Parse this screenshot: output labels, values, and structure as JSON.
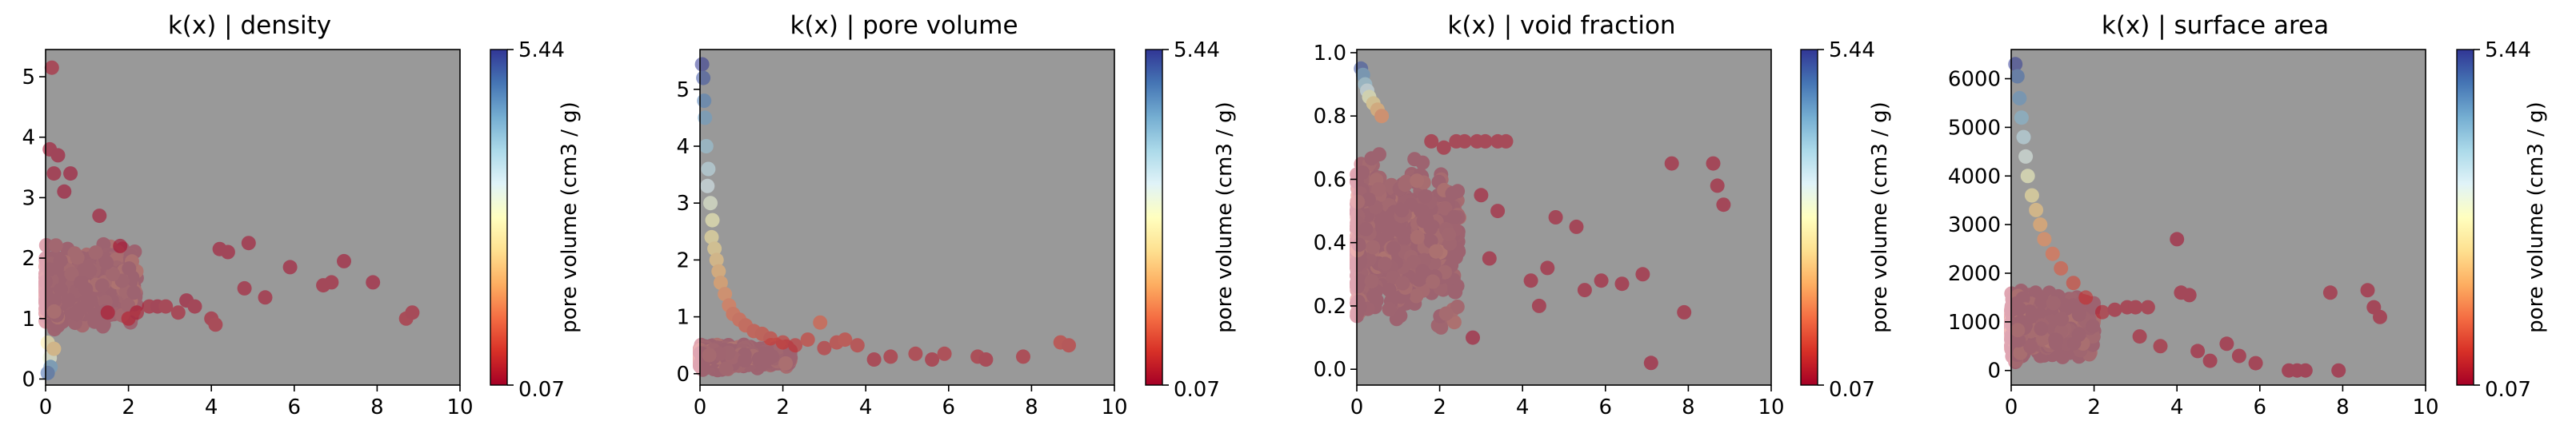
{
  "figure": {
    "background": "#ffffff",
    "plot_background": "#999999",
    "colormap": "RdYlBu",
    "marker_alpha": 0.35
  },
  "chart_data": [
    {
      "type": "scatter",
      "title": "k(x) | density",
      "xlabel": "",
      "ylabel": "",
      "xlim": [
        0,
        10
      ],
      "ylim": [
        -0.1,
        5.45
      ],
      "xticks": [
        "0",
        "2",
        "4",
        "6",
        "8",
        "10"
      ],
      "yticks": [
        "0",
        "1",
        "2",
        "3",
        "4",
        "5"
      ],
      "grid": false,
      "colorbar": {
        "label": "pore volume (cm3 / g)",
        "min": "0.07",
        "max": "5.44"
      },
      "cloud": {
        "x_range": [
          0,
          2.2
        ],
        "y_center": 1.5,
        "y_spread": 0.8
      },
      "points": [
        {
          "x": 0.15,
          "y": 5.15,
          "c": 0.2
        },
        {
          "x": 0.1,
          "y": 3.8,
          "c": 0.1
        },
        {
          "x": 0.3,
          "y": 3.7,
          "c": 0.08
        },
        {
          "x": 0.2,
          "y": 3.4,
          "c": 0.1
        },
        {
          "x": 0.6,
          "y": 3.4,
          "c": 0.05
        },
        {
          "x": 0.45,
          "y": 3.1,
          "c": 0.06
        },
        {
          "x": 0.05,
          "y": 0.6,
          "c": 2.5
        },
        {
          "x": 0.1,
          "y": 0.35,
          "c": 3.0
        },
        {
          "x": 0.12,
          "y": 0.2,
          "c": 4.5
        },
        {
          "x": 0.05,
          "y": 0.1,
          "c": 5.0
        },
        {
          "x": 0.2,
          "y": 0.5,
          "c": 2.0
        },
        {
          "x": 1.3,
          "y": 2.7,
          "c": 0.1
        },
        {
          "x": 1.5,
          "y": 1.1,
          "c": 0.2
        },
        {
          "x": 1.8,
          "y": 2.2,
          "c": 0.1
        },
        {
          "x": 2.0,
          "y": 1.0,
          "c": 0.3
        },
        {
          "x": 2.2,
          "y": 1.1,
          "c": 0.2
        },
        {
          "x": 2.5,
          "y": 1.2,
          "c": 0.2
        },
        {
          "x": 2.7,
          "y": 1.2,
          "c": 0.15
        },
        {
          "x": 2.9,
          "y": 1.2,
          "c": 0.2
        },
        {
          "x": 3.2,
          "y": 1.1,
          "c": 0.2
        },
        {
          "x": 3.4,
          "y": 1.3,
          "c": 0.1
        },
        {
          "x": 3.6,
          "y": 1.2,
          "c": 0.15
        },
        {
          "x": 4.0,
          "y": 1.0,
          "c": 0.2
        },
        {
          "x": 4.1,
          "y": 0.9,
          "c": 0.25
        },
        {
          "x": 4.2,
          "y": 2.15,
          "c": 0.1
        },
        {
          "x": 4.4,
          "y": 2.1,
          "c": 0.1
        },
        {
          "x": 4.9,
          "y": 2.25,
          "c": 0.1
        },
        {
          "x": 4.8,
          "y": 1.5,
          "c": 0.15
        },
        {
          "x": 5.3,
          "y": 1.35,
          "c": 0.15
        },
        {
          "x": 5.9,
          "y": 1.85,
          "c": 0.1
        },
        {
          "x": 6.7,
          "y": 1.55,
          "c": 0.15
        },
        {
          "x": 6.9,
          "y": 1.6,
          "c": 0.15
        },
        {
          "x": 7.2,
          "y": 1.95,
          "c": 0.1
        },
        {
          "x": 7.9,
          "y": 1.6,
          "c": 0.12
        },
        {
          "x": 8.7,
          "y": 1.0,
          "c": 0.25
        },
        {
          "x": 8.85,
          "y": 1.1,
          "c": 0.2
        }
      ]
    },
    {
      "type": "scatter",
      "title": "k(x) | pore volume",
      "xlabel": "",
      "ylabel": "",
      "xlim": [
        0,
        10
      ],
      "ylim": [
        -0.2,
        5.7
      ],
      "xticks": [
        "0",
        "2",
        "4",
        "6",
        "8",
        "10"
      ],
      "yticks": [
        "0",
        "1",
        "2",
        "3",
        "4",
        "5"
      ],
      "grid": false,
      "colorbar": {
        "label": "pore volume (cm3 / g)",
        "min": "0.07",
        "max": "5.44"
      },
      "cloud": {
        "x_range": [
          0,
          2.2
        ],
        "y_center": 0.3,
        "y_spread": 0.25
      },
      "points": [
        {
          "x": 0.05,
          "y": 5.44,
          "c": 5.44
        },
        {
          "x": 0.08,
          "y": 5.2,
          "c": 5.2
        },
        {
          "x": 0.1,
          "y": 4.8,
          "c": 4.8
        },
        {
          "x": 0.12,
          "y": 4.5,
          "c": 4.5
        },
        {
          "x": 0.15,
          "y": 4.0,
          "c": 4.0
        },
        {
          "x": 0.2,
          "y": 3.6,
          "c": 3.6
        },
        {
          "x": 0.18,
          "y": 3.3,
          "c": 3.3
        },
        {
          "x": 0.25,
          "y": 3.0,
          "c": 3.0
        },
        {
          "x": 0.3,
          "y": 2.7,
          "c": 2.7
        },
        {
          "x": 0.28,
          "y": 2.4,
          "c": 2.4
        },
        {
          "x": 0.35,
          "y": 2.2,
          "c": 2.2
        },
        {
          "x": 0.4,
          "y": 2.0,
          "c": 2.0
        },
        {
          "x": 0.45,
          "y": 1.8,
          "c": 1.8
        },
        {
          "x": 0.5,
          "y": 1.6,
          "c": 1.6
        },
        {
          "x": 0.6,
          "y": 1.4,
          "c": 1.4
        },
        {
          "x": 0.7,
          "y": 1.2,
          "c": 1.2
        },
        {
          "x": 0.8,
          "y": 1.05,
          "c": 1.05
        },
        {
          "x": 0.95,
          "y": 0.95,
          "c": 0.95
        },
        {
          "x": 1.1,
          "y": 0.85,
          "c": 0.85
        },
        {
          "x": 1.3,
          "y": 0.75,
          "c": 0.75
        },
        {
          "x": 1.5,
          "y": 0.7,
          "c": 0.7
        },
        {
          "x": 1.7,
          "y": 0.62,
          "c": 0.62
        },
        {
          "x": 2.0,
          "y": 0.55,
          "c": 0.55
        },
        {
          "x": 2.3,
          "y": 0.5,
          "c": 0.5
        },
        {
          "x": 2.6,
          "y": 0.6,
          "c": 0.6
        },
        {
          "x": 2.9,
          "y": 0.9,
          "c": 0.9
        },
        {
          "x": 3.0,
          "y": 0.45,
          "c": 0.45
        },
        {
          "x": 3.3,
          "y": 0.55,
          "c": 0.55
        },
        {
          "x": 3.5,
          "y": 0.6,
          "c": 0.6
        },
        {
          "x": 3.8,
          "y": 0.5,
          "c": 0.5
        },
        {
          "x": 4.2,
          "y": 0.25,
          "c": 0.25
        },
        {
          "x": 4.6,
          "y": 0.3,
          "c": 0.3
        },
        {
          "x": 5.2,
          "y": 0.35,
          "c": 0.35
        },
        {
          "x": 5.6,
          "y": 0.25,
          "c": 0.25
        },
        {
          "x": 5.9,
          "y": 0.35,
          "c": 0.35
        },
        {
          "x": 6.7,
          "y": 0.3,
          "c": 0.3
        },
        {
          "x": 6.9,
          "y": 0.25,
          "c": 0.25
        },
        {
          "x": 7.8,
          "y": 0.3,
          "c": 0.3
        },
        {
          "x": 8.7,
          "y": 0.55,
          "c": 0.55
        },
        {
          "x": 8.9,
          "y": 0.5,
          "c": 0.5
        }
      ]
    },
    {
      "type": "scatter",
      "title": "k(x) | void fraction",
      "xlabel": "",
      "ylabel": "",
      "xlim": [
        0,
        10
      ],
      "ylim": [
        -0.05,
        1.01
      ],
      "xticks": [
        "0",
        "2",
        "4",
        "6",
        "8",
        "10"
      ],
      "yticks": [
        "0.0",
        "0.2",
        "0.4",
        "0.6",
        "0.8",
        "1.0"
      ],
      "grid": false,
      "colorbar": {
        "label": "pore volume (cm3 / g)",
        "min": "0.07",
        "max": "5.44"
      },
      "cloud": {
        "x_range": [
          0,
          2.5
        ],
        "y_center": 0.4,
        "y_spread": 0.3
      },
      "points": [
        {
          "x": 0.1,
          "y": 0.95,
          "c": 5.2
        },
        {
          "x": 0.15,
          "y": 0.93,
          "c": 4.6
        },
        {
          "x": 0.2,
          "y": 0.9,
          "c": 4.0
        },
        {
          "x": 0.25,
          "y": 0.88,
          "c": 3.4
        },
        {
          "x": 0.3,
          "y": 0.86,
          "c": 2.8
        },
        {
          "x": 0.4,
          "y": 0.84,
          "c": 2.2
        },
        {
          "x": 0.5,
          "y": 0.82,
          "c": 1.8
        },
        {
          "x": 0.6,
          "y": 0.8,
          "c": 1.4
        },
        {
          "x": 1.8,
          "y": 0.72,
          "c": 0.2
        },
        {
          "x": 2.1,
          "y": 0.7,
          "c": 0.2
        },
        {
          "x": 2.4,
          "y": 0.72,
          "c": 0.2
        },
        {
          "x": 2.6,
          "y": 0.72,
          "c": 0.2
        },
        {
          "x": 2.9,
          "y": 0.72,
          "c": 0.2
        },
        {
          "x": 3.1,
          "y": 0.72,
          "c": 0.2
        },
        {
          "x": 3.4,
          "y": 0.72,
          "c": 0.2
        },
        {
          "x": 3.6,
          "y": 0.72,
          "c": 0.2
        },
        {
          "x": 3.0,
          "y": 0.55,
          "c": 0.15
        },
        {
          "x": 3.4,
          "y": 0.5,
          "c": 0.15
        },
        {
          "x": 3.2,
          "y": 0.35,
          "c": 0.15
        },
        {
          "x": 2.8,
          "y": 0.1,
          "c": 0.1
        },
        {
          "x": 4.2,
          "y": 0.28,
          "c": 0.15
        },
        {
          "x": 4.6,
          "y": 0.32,
          "c": 0.15
        },
        {
          "x": 4.4,
          "y": 0.2,
          "c": 0.15
        },
        {
          "x": 4.8,
          "y": 0.48,
          "c": 0.15
        },
        {
          "x": 5.3,
          "y": 0.45,
          "c": 0.15
        },
        {
          "x": 5.5,
          "y": 0.25,
          "c": 0.15
        },
        {
          "x": 5.9,
          "y": 0.28,
          "c": 0.15
        },
        {
          "x": 6.4,
          "y": 0.27,
          "c": 0.15
        },
        {
          "x": 6.9,
          "y": 0.3,
          "c": 0.15
        },
        {
          "x": 7.1,
          "y": 0.02,
          "c": 0.1
        },
        {
          "x": 7.6,
          "y": 0.65,
          "c": 0.15
        },
        {
          "x": 7.9,
          "y": 0.18,
          "c": 0.15
        },
        {
          "x": 8.6,
          "y": 0.65,
          "c": 0.15
        },
        {
          "x": 8.7,
          "y": 0.58,
          "c": 0.15
        },
        {
          "x": 8.85,
          "y": 0.52,
          "c": 0.15
        }
      ]
    },
    {
      "type": "scatter",
      "title": "k(x) | surface area",
      "xlabel": "",
      "ylabel": "",
      "xlim": [
        0,
        10
      ],
      "ylim": [
        -300,
        6600
      ],
      "xticks": [
        "0",
        "2",
        "4",
        "6",
        "8",
        "10"
      ],
      "yticks": [
        "0",
        "1000",
        "2000",
        "3000",
        "4000",
        "5000",
        "6000"
      ],
      "grid": false,
      "colorbar": {
        "label": "pore volume (cm3 / g)",
        "min": "0.07",
        "max": "5.44"
      },
      "cloud": {
        "x_range": [
          0,
          2.0
        ],
        "y_center": 900,
        "y_spread": 800
      },
      "points": [
        {
          "x": 0.1,
          "y": 6300,
          "c": 5.4
        },
        {
          "x": 0.15,
          "y": 6050,
          "c": 5.0
        },
        {
          "x": 0.2,
          "y": 5600,
          "c": 4.6
        },
        {
          "x": 0.25,
          "y": 5200,
          "c": 4.2
        },
        {
          "x": 0.3,
          "y": 4800,
          "c": 3.6
        },
        {
          "x": 0.35,
          "y": 4400,
          "c": 3.2
        },
        {
          "x": 0.4,
          "y": 4000,
          "c": 2.8
        },
        {
          "x": 0.5,
          "y": 3600,
          "c": 2.4
        },
        {
          "x": 0.6,
          "y": 3300,
          "c": 2.0
        },
        {
          "x": 0.7,
          "y": 3000,
          "c": 1.7
        },
        {
          "x": 0.8,
          "y": 2700,
          "c": 1.4
        },
        {
          "x": 1.0,
          "y": 2400,
          "c": 1.1
        },
        {
          "x": 1.2,
          "y": 2100,
          "c": 0.9
        },
        {
          "x": 1.5,
          "y": 1800,
          "c": 0.7
        },
        {
          "x": 1.8,
          "y": 1500,
          "c": 0.5
        },
        {
          "x": 2.2,
          "y": 1200,
          "c": 0.3
        },
        {
          "x": 2.5,
          "y": 1250,
          "c": 0.2
        },
        {
          "x": 2.8,
          "y": 1300,
          "c": 0.2
        },
        {
          "x": 3.0,
          "y": 1300,
          "c": 0.2
        },
        {
          "x": 3.3,
          "y": 1300,
          "c": 0.2
        },
        {
          "x": 3.1,
          "y": 700,
          "c": 0.2
        },
        {
          "x": 3.6,
          "y": 500,
          "c": 0.2
        },
        {
          "x": 4.0,
          "y": 2700,
          "c": 0.1
        },
        {
          "x": 4.1,
          "y": 1600,
          "c": 0.15
        },
        {
          "x": 4.3,
          "y": 1550,
          "c": 0.15
        },
        {
          "x": 4.5,
          "y": 400,
          "c": 0.15
        },
        {
          "x": 4.8,
          "y": 200,
          "c": 0.15
        },
        {
          "x": 5.2,
          "y": 550,
          "c": 0.15
        },
        {
          "x": 5.5,
          "y": 300,
          "c": 0.15
        },
        {
          "x": 5.9,
          "y": 150,
          "c": 0.15
        },
        {
          "x": 6.7,
          "y": 0,
          "c": 0.1
        },
        {
          "x": 6.9,
          "y": 0,
          "c": 0.1
        },
        {
          "x": 7.1,
          "y": 0,
          "c": 0.1
        },
        {
          "x": 7.7,
          "y": 1600,
          "c": 0.15
        },
        {
          "x": 7.9,
          "y": 0,
          "c": 0.1
        },
        {
          "x": 8.6,
          "y": 1650,
          "c": 0.15
        },
        {
          "x": 8.75,
          "y": 1300,
          "c": 0.15
        },
        {
          "x": 8.9,
          "y": 1100,
          "c": 0.15
        }
      ]
    }
  ]
}
